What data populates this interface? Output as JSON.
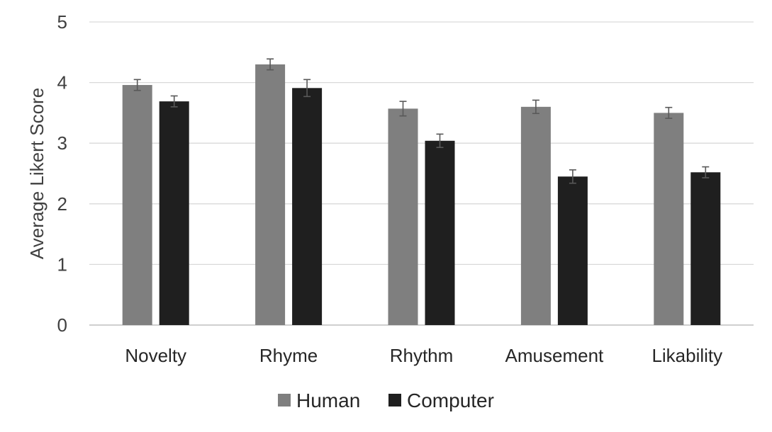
{
  "chart_data": {
    "type": "bar",
    "title": "",
    "xlabel": "",
    "ylabel": "Average Likert Score",
    "ylim": [
      0,
      5
    ],
    "yticks": [
      0,
      1,
      2,
      3,
      4,
      5
    ],
    "grid": true,
    "legend_position": "bottom",
    "categories": [
      "Novelty",
      "Rhyme",
      "Rhythm",
      "Amusement",
      "Likability"
    ],
    "series": [
      {
        "name": "Human",
        "color": "#7f7f7f",
        "values": [
          3.96,
          4.3,
          3.57,
          3.6,
          3.5
        ],
        "errors": [
          0.09,
          0.09,
          0.12,
          0.11,
          0.09
        ]
      },
      {
        "name": "Computer",
        "color": "#1f1f1f",
        "values": [
          3.69,
          3.91,
          3.04,
          2.45,
          2.52
        ],
        "errors": [
          0.09,
          0.14,
          0.11,
          0.11,
          0.09
        ]
      }
    ],
    "error_bar_color": "#595959",
    "gridline_color": "#d9d9d9"
  }
}
